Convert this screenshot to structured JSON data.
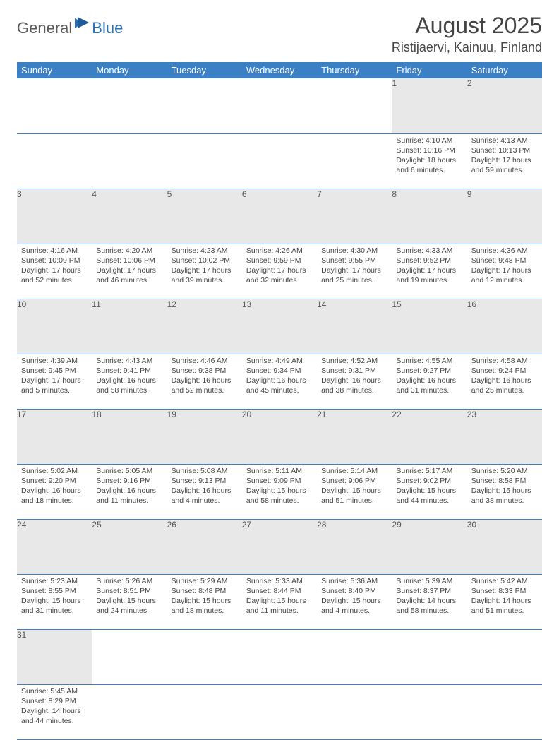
{
  "brand": {
    "part1": "General",
    "part2": "Blue"
  },
  "title": "August 2025",
  "location": "Ristijaervi, Kainuu, Finland",
  "colors": {
    "header_bg": "#3b7fc4",
    "header_fg": "#ffffff",
    "daynum_bg": "#e8e8e8",
    "rule": "#3b7fc4",
    "logo_gray": "#5a5a5a",
    "logo_blue": "#2b6fb3"
  },
  "weekdays": [
    "Sunday",
    "Monday",
    "Tuesday",
    "Wednesday",
    "Thursday",
    "Friday",
    "Saturday"
  ],
  "weeks": [
    [
      null,
      null,
      null,
      null,
      null,
      {
        "n": "1",
        "sr": "4:10 AM",
        "ss": "10:16 PM",
        "dl": "18 hours and 6 minutes."
      },
      {
        "n": "2",
        "sr": "4:13 AM",
        "ss": "10:13 PM",
        "dl": "17 hours and 59 minutes."
      }
    ],
    [
      {
        "n": "3",
        "sr": "4:16 AM",
        "ss": "10:09 PM",
        "dl": "17 hours and 52 minutes."
      },
      {
        "n": "4",
        "sr": "4:20 AM",
        "ss": "10:06 PM",
        "dl": "17 hours and 46 minutes."
      },
      {
        "n": "5",
        "sr": "4:23 AM",
        "ss": "10:02 PM",
        "dl": "17 hours and 39 minutes."
      },
      {
        "n": "6",
        "sr": "4:26 AM",
        "ss": "9:59 PM",
        "dl": "17 hours and 32 minutes."
      },
      {
        "n": "7",
        "sr": "4:30 AM",
        "ss": "9:55 PM",
        "dl": "17 hours and 25 minutes."
      },
      {
        "n": "8",
        "sr": "4:33 AM",
        "ss": "9:52 PM",
        "dl": "17 hours and 19 minutes."
      },
      {
        "n": "9",
        "sr": "4:36 AM",
        "ss": "9:48 PM",
        "dl": "17 hours and 12 minutes."
      }
    ],
    [
      {
        "n": "10",
        "sr": "4:39 AM",
        "ss": "9:45 PM",
        "dl": "17 hours and 5 minutes."
      },
      {
        "n": "11",
        "sr": "4:43 AM",
        "ss": "9:41 PM",
        "dl": "16 hours and 58 minutes."
      },
      {
        "n": "12",
        "sr": "4:46 AM",
        "ss": "9:38 PM",
        "dl": "16 hours and 52 minutes."
      },
      {
        "n": "13",
        "sr": "4:49 AM",
        "ss": "9:34 PM",
        "dl": "16 hours and 45 minutes."
      },
      {
        "n": "14",
        "sr": "4:52 AM",
        "ss": "9:31 PM",
        "dl": "16 hours and 38 minutes."
      },
      {
        "n": "15",
        "sr": "4:55 AM",
        "ss": "9:27 PM",
        "dl": "16 hours and 31 minutes."
      },
      {
        "n": "16",
        "sr": "4:58 AM",
        "ss": "9:24 PM",
        "dl": "16 hours and 25 minutes."
      }
    ],
    [
      {
        "n": "17",
        "sr": "5:02 AM",
        "ss": "9:20 PM",
        "dl": "16 hours and 18 minutes."
      },
      {
        "n": "18",
        "sr": "5:05 AM",
        "ss": "9:16 PM",
        "dl": "16 hours and 11 minutes."
      },
      {
        "n": "19",
        "sr": "5:08 AM",
        "ss": "9:13 PM",
        "dl": "16 hours and 4 minutes."
      },
      {
        "n": "20",
        "sr": "5:11 AM",
        "ss": "9:09 PM",
        "dl": "15 hours and 58 minutes."
      },
      {
        "n": "21",
        "sr": "5:14 AM",
        "ss": "9:06 PM",
        "dl": "15 hours and 51 minutes."
      },
      {
        "n": "22",
        "sr": "5:17 AM",
        "ss": "9:02 PM",
        "dl": "15 hours and 44 minutes."
      },
      {
        "n": "23",
        "sr": "5:20 AM",
        "ss": "8:58 PM",
        "dl": "15 hours and 38 minutes."
      }
    ],
    [
      {
        "n": "24",
        "sr": "5:23 AM",
        "ss": "8:55 PM",
        "dl": "15 hours and 31 minutes."
      },
      {
        "n": "25",
        "sr": "5:26 AM",
        "ss": "8:51 PM",
        "dl": "15 hours and 24 minutes."
      },
      {
        "n": "26",
        "sr": "5:29 AM",
        "ss": "8:48 PM",
        "dl": "15 hours and 18 minutes."
      },
      {
        "n": "27",
        "sr": "5:33 AM",
        "ss": "8:44 PM",
        "dl": "15 hours and 11 minutes."
      },
      {
        "n": "28",
        "sr": "5:36 AM",
        "ss": "8:40 PM",
        "dl": "15 hours and 4 minutes."
      },
      {
        "n": "29",
        "sr": "5:39 AM",
        "ss": "8:37 PM",
        "dl": "14 hours and 58 minutes."
      },
      {
        "n": "30",
        "sr": "5:42 AM",
        "ss": "8:33 PM",
        "dl": "14 hours and 51 minutes."
      }
    ],
    [
      {
        "n": "31",
        "sr": "5:45 AM",
        "ss": "8:29 PM",
        "dl": "14 hours and 44 minutes."
      },
      null,
      null,
      null,
      null,
      null,
      null
    ]
  ],
  "labels": {
    "sunrise": "Sunrise:",
    "sunset": "Sunset:",
    "daylight": "Daylight:"
  }
}
